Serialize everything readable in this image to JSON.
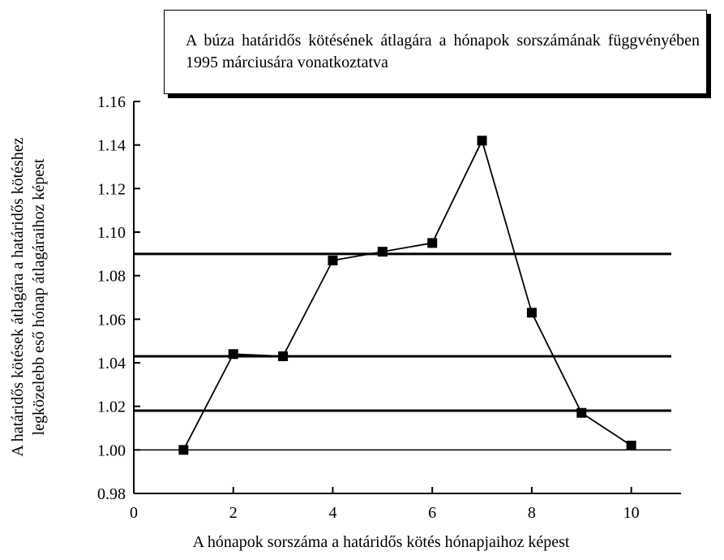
{
  "chart_data": {
    "type": "line",
    "title": "A búza határidős kötésének átlagára a hónapok sorszámának függvényében 1995 márciusára vonatkoztatva",
    "xlabel": "A hónapok sorszáma a határidős kötés hónapjaihoz képest",
    "ylabel": [
      "A határidős kötések átlagára a határidős kötéshez",
      "legközelebb eső hónap átlagáraihoz képest"
    ],
    "x": [
      1,
      2,
      3,
      4,
      5,
      6,
      7,
      8,
      9,
      10
    ],
    "series": [
      {
        "color": "#000000",
        "values": [
          1.0,
          1.044,
          1.043,
          1.087,
          1.091,
          1.095,
          1.142,
          1.063,
          1.017,
          1.002
        ]
      }
    ],
    "reference_lines": [
      1.09,
      1.043,
      1.018,
      1.0
    ],
    "xlim": [
      0,
      11
    ],
    "xticks": [
      0,
      2,
      4,
      6,
      8,
      10
    ],
    "ylim": [
      0.98,
      1.16
    ],
    "yticks": [
      0.98,
      {
        "value": 1,
        "label": "1.00"
      },
      1.02,
      1.04,
      1.06,
      1.08,
      {
        "value": 1.1,
        "label": "1.10"
      },
      1.12,
      1.14,
      1.16
    ]
  }
}
